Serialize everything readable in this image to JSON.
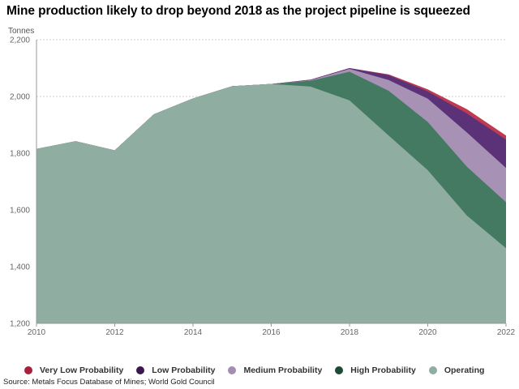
{
  "title": "Mine production likely to drop beyond 2018 as the project pipeline is squeezed",
  "unit_label": "Tonnes",
  "source": "Source: Metals Focus Database of Mines; World Gold Council",
  "colors": {
    "operating": "#8fada1",
    "high": "#457a62",
    "medium": "#a791b4",
    "low": "#5b3278",
    "very_low": "#bf3b52",
    "grid": "#cccccc",
    "axis": "#999999"
  },
  "legend": [
    {
      "label": "Very Low Probability",
      "color": "#a8203a"
    },
    {
      "label": "Low Probability",
      "color": "#3d1650"
    },
    {
      "label": "Medium Probability",
      "color": "#a48db3"
    },
    {
      "label": "High Probability",
      "color": "#1e4a36"
    },
    {
      "label": "Operating",
      "color": "#8fada1"
    }
  ],
  "chart_data": {
    "type": "area",
    "stacked": false,
    "x": [
      2010,
      2011,
      2012,
      2013,
      2014,
      2015,
      2016,
      2017,
      2018,
      2019,
      2020,
      2021,
      2022
    ],
    "x_ticks": [
      "2010",
      "2012",
      "2014",
      "2016",
      "2018",
      "2020",
      "2022"
    ],
    "y_ticks": [
      "1,200",
      "1,400",
      "1,600",
      "1,800",
      "2,000",
      "2,200"
    ],
    "ylim": [
      1200,
      2200
    ],
    "xlim": [
      2010,
      2022
    ],
    "grid": "horizontal",
    "legend_position": "bottom",
    "series": [
      {
        "name": "Very Low Probability",
        "values": [
          1815,
          1842,
          1810,
          1937,
          1993,
          2036,
          2044,
          2059,
          2100,
          2078,
          2025,
          1955,
          1862
        ]
      },
      {
        "name": "Low Probability",
        "values": [
          1815,
          1842,
          1810,
          1937,
          1993,
          2036,
          2044,
          2059,
          2100,
          2075,
          2018,
          1940,
          1848
        ]
      },
      {
        "name": "Medium Probability",
        "values": [
          1815,
          1842,
          1810,
          1937,
          1993,
          2036,
          2044,
          2057,
          2097,
          2058,
          1992,
          1873,
          1748
        ]
      },
      {
        "name": "High Probability",
        "values": [
          1815,
          1842,
          1810,
          1937,
          1993,
          2036,
          2044,
          2055,
          2087,
          2020,
          1910,
          1752,
          1627
        ]
      },
      {
        "name": "Operating",
        "values": [
          1815,
          1842,
          1810,
          1937,
          1993,
          2036,
          2044,
          2035,
          1986,
          1862,
          1740,
          1580,
          1465
        ]
      }
    ]
  }
}
